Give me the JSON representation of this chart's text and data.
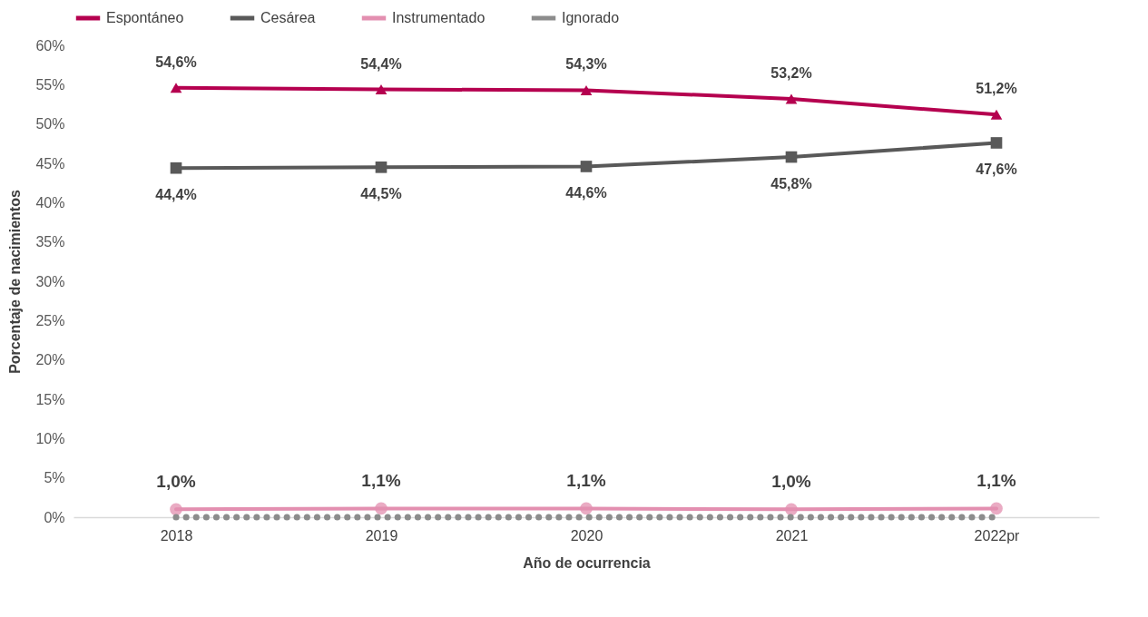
{
  "chart_data": {
    "type": "line",
    "xlabel": "Año de ocurrencia",
    "ylabel": "Porcentaje de nacimientos",
    "categories": [
      "2018",
      "2019",
      "2020",
      "2021",
      "2022pr"
    ],
    "series": [
      {
        "name": "Espontáneo",
        "color": "#b5004f",
        "marker": "triangle",
        "line_style": "solid",
        "values": [
          54.6,
          54.4,
          54.3,
          53.2,
          51.2
        ],
        "value_labels": [
          "54,6%",
          "54,4%",
          "54,3%",
          "53,2%",
          "51,2%"
        ]
      },
      {
        "name": "Cesárea",
        "color": "#595959",
        "marker": "square",
        "line_style": "solid",
        "values": [
          44.4,
          44.5,
          44.6,
          45.8,
          47.6
        ],
        "value_labels": [
          "44,4%",
          "44,5%",
          "44,6%",
          "45,8%",
          "47,6%"
        ]
      },
      {
        "name": "Instrumentado",
        "color": "#e38fb0",
        "marker": "circle",
        "line_style": "solid",
        "values": [
          1.0,
          1.1,
          1.1,
          1.0,
          1.1
        ],
        "value_labels": [
          "1,0%",
          "1,1%",
          "1,1%",
          "1,0%",
          "1,1%"
        ]
      },
      {
        "name": "Ignorado",
        "color": "#8c8c8c",
        "marker": "none",
        "line_style": "dotted",
        "values": [
          0,
          0,
          0,
          0,
          0
        ]
      }
    ],
    "ylim": [
      0,
      60
    ],
    "yticks": [
      {
        "value": 0,
        "label": "0%"
      },
      {
        "value": 5,
        "label": "5%"
      },
      {
        "value": 10,
        "label": "10%"
      },
      {
        "value": 15,
        "label": "15%"
      },
      {
        "value": 20,
        "label": "20%"
      },
      {
        "value": 25,
        "label": "25%"
      },
      {
        "value": 30,
        "label": "30%"
      },
      {
        "value": 35,
        "label": "35%"
      },
      {
        "value": 40,
        "label": "40%"
      },
      {
        "value": 45,
        "label": "45%"
      },
      {
        "value": 50,
        "label": "50%"
      },
      {
        "value": 55,
        "label": "55%"
      },
      {
        "value": 60,
        "label": "60%"
      }
    ],
    "grid": false,
    "legend": "top"
  }
}
